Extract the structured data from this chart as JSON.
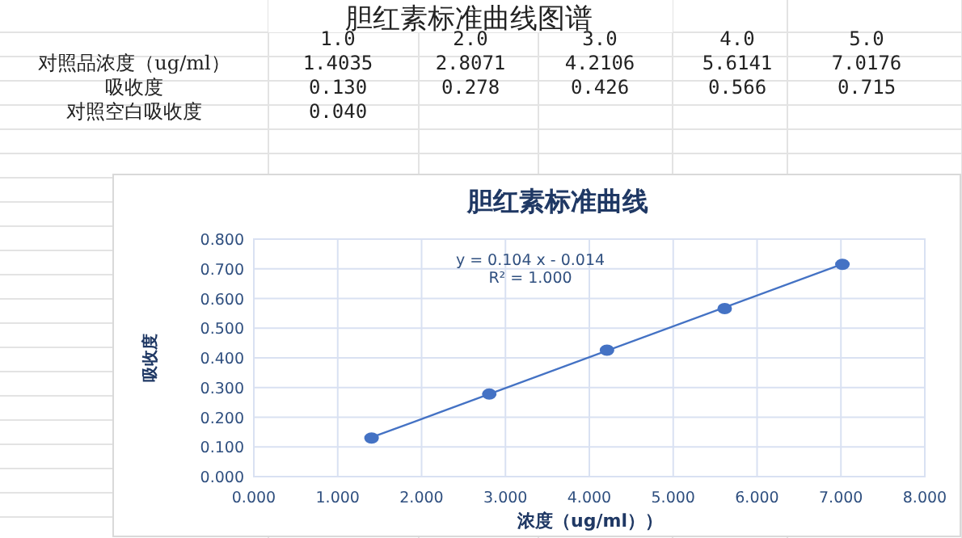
{
  "chart_data": {
    "type": "scatter",
    "title": "胆红素标准曲线",
    "xlabel": "浓度（ug/ml））",
    "ylabel": "吸收度",
    "annotations": [
      "胆红素标准曲线图谱",
      "1.0",
      "2.0",
      "3.0",
      "4.0",
      "5.0",
      "对照品浓度（ug/ml）",
      "1.4035",
      "2.8071",
      "4.2106",
      "5.6141",
      "7.0176",
      "吸收度",
      "0.130",
      "0.278",
      "0.426",
      "0.566",
      "0.715",
      "对照空白吸收度",
      "0.040",
      "y = 0.104  x - 0.014",
      "R² = 1.000"
    ],
    "series": [
      {
        "color": "#4472c4",
        "marker": "circle",
        "x": [
          1.4035,
          2.8071,
          4.2106,
          5.6141,
          7.0176
        ],
        "values": [
          0.13,
          0.278,
          0.426,
          0.566,
          0.715
        ]
      },
      {
        "type": "line",
        "color": "#4472c4",
        "line_style": "solid",
        "x": [
          1.4035,
          7.0176
        ],
        "values": [
          0.132,
          0.716
        ]
      }
    ],
    "xlim": [
      0,
      8
    ],
    "ylim": [
      0,
      0.8
    ],
    "xticks": [
      {
        "value": 0,
        "label": "0.000"
      },
      {
        "value": 1,
        "label": "1.000"
      },
      {
        "value": 2,
        "label": "2.000"
      },
      {
        "value": 3,
        "label": "3.000"
      },
      {
        "value": 4,
        "label": "4.000"
      },
      {
        "value": 5,
        "label": "5.000"
      },
      {
        "value": 6,
        "label": "6.000"
      },
      {
        "value": 7,
        "label": "7.000"
      },
      {
        "value": 8,
        "label": "8.000"
      }
    ],
    "yticks": [
      {
        "value": 0,
        "label": "0.000"
      },
      {
        "value": 0.1,
        "label": "0.100"
      },
      {
        "value": 0.2,
        "label": "0.200"
      },
      {
        "value": 0.3,
        "label": "0.300"
      },
      {
        "value": 0.4,
        "label": "0.400"
      },
      {
        "value": 0.5,
        "label": "0.500"
      },
      {
        "value": 0.6,
        "label": "0.600"
      },
      {
        "value": 0.7,
        "label": "0.700"
      },
      {
        "value": 0.8,
        "label": "0.800"
      }
    ],
    "grid": true
  }
}
